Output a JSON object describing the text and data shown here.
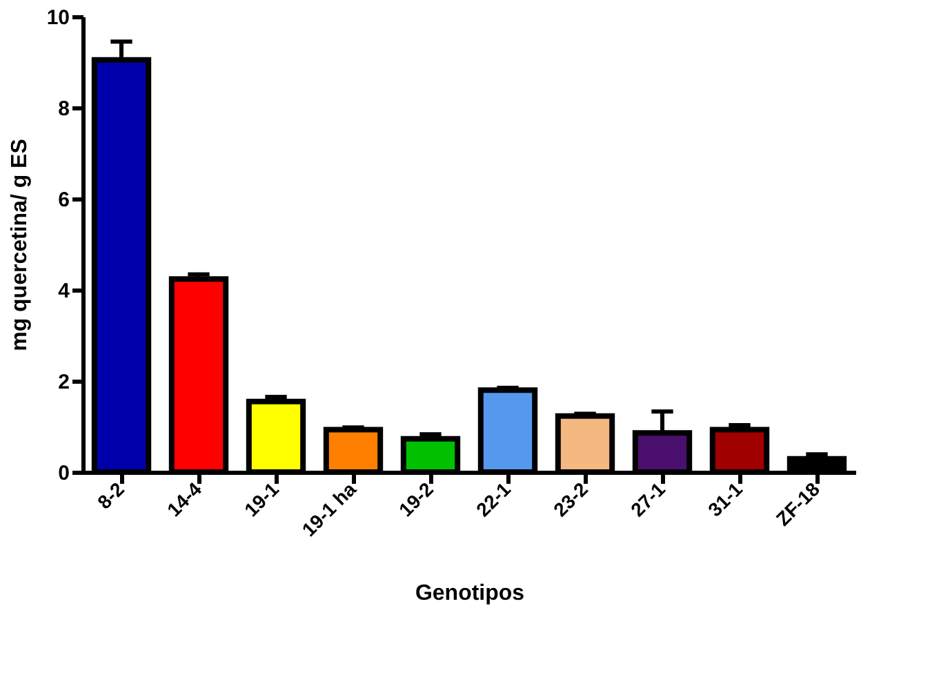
{
  "chart_data": {
    "type": "bar",
    "xlabel": "Genotipos",
    "ylabel": "mg quercetina/ g ES",
    "categories": [
      "8-2",
      "14-4",
      "19-1",
      "19-1 ha",
      "19-2",
      "22-1",
      "23-2",
      "27-1",
      "31-1",
      "ZF-18"
    ],
    "values": [
      9.05,
      4.24,
      1.55,
      0.93,
      0.73,
      1.8,
      1.23,
      0.86,
      0.93,
      0.29
    ],
    "errors": [
      0.4,
      0.1,
      0.1,
      0.05,
      0.1,
      0.05,
      0.05,
      0.47,
      0.1,
      0.1
    ],
    "colors": [
      "#0000aa",
      "#ff0000",
      "#ffff00",
      "#ff8000",
      "#00c000",
      "#5599ee",
      "#f5b880",
      "#4b0f6e",
      "#a00000",
      "#000000"
    ],
    "ylim": [
      0,
      10
    ],
    "yticks": [
      0,
      2,
      4,
      6,
      8,
      10
    ],
    "grid": false
  }
}
